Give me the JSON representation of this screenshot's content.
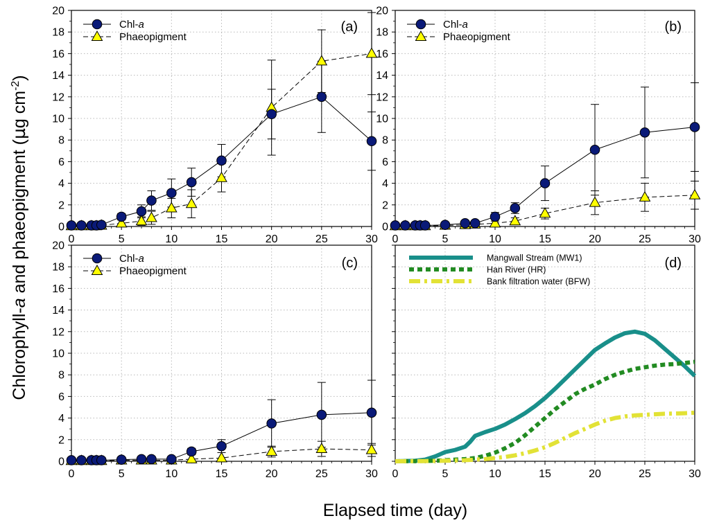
{
  "figure": {
    "ylabel_prefix": "Chlorophyll-",
    "ylabel_italic": "a",
    "ylabel_middle": " and phaeopigment (",
    "ylabel_mu": "µ",
    "ylabel_unit": "g cm",
    "ylabel_sup": "-2",
    "ylabel_close": ")",
    "xlabel": "Elapsed time (day)"
  },
  "chart_data": [
    {
      "type": "line",
      "panel": "(a)",
      "xlim": [
        0,
        30
      ],
      "ylim": [
        0,
        20
      ],
      "xticks": [
        0,
        5,
        10,
        15,
        20,
        25,
        30
      ],
      "yticks": [
        0,
        2,
        4,
        6,
        8,
        10,
        12,
        14,
        16,
        18,
        20
      ],
      "grid": true,
      "legend": [
        {
          "prefix": "Chl-",
          "italic": "a"
        },
        {
          "prefix": "Phaeopigment",
          "italic": ""
        }
      ],
      "series": [
        {
          "name": "Chl-a",
          "marker": "circle",
          "dash": "solid",
          "x": [
            0,
            1,
            2,
            2.5,
            3,
            5,
            7,
            8,
            10,
            12,
            15,
            20,
            25,
            30
          ],
          "y": [
            0.1,
            0.1,
            0.1,
            0.1,
            0.15,
            0.9,
            1.4,
            2.4,
            3.1,
            4.1,
            6.1,
            10.4,
            12.0,
            7.9
          ],
          "err": [
            0.05,
            0.05,
            0.05,
            0.05,
            0.1,
            0.3,
            0.6,
            0.9,
            1.3,
            1.3,
            1.5,
            2.3,
            3.3,
            2.7
          ]
        },
        {
          "name": "Phaeopigment",
          "marker": "triangle",
          "dash": "dashed",
          "x": [
            0,
            1,
            2,
            2.5,
            3,
            5,
            7,
            8,
            10,
            12,
            15,
            20,
            25,
            30
          ],
          "y": [
            0.05,
            0.05,
            0.05,
            0.05,
            0.1,
            0.3,
            0.5,
            0.8,
            1.7,
            2.1,
            4.5,
            11.0,
            15.3,
            16.0
          ],
          "err": [
            0.05,
            0.05,
            0.05,
            0.05,
            0.1,
            0.2,
            0.4,
            0.6,
            0.9,
            1.3,
            1.3,
            4.4,
            2.9,
            3.8
          ]
        }
      ]
    },
    {
      "type": "line",
      "panel": "(b)",
      "xlim": [
        0,
        30
      ],
      "ylim": [
        0,
        20
      ],
      "xticks": [
        0,
        5,
        10,
        15,
        20,
        25,
        30
      ],
      "yticks": [
        0,
        2,
        4,
        6,
        8,
        10,
        12,
        14,
        16,
        18,
        20
      ],
      "grid": true,
      "legend": [
        {
          "prefix": "Chl-",
          "italic": "a"
        },
        {
          "prefix": "Phaeopigment",
          "italic": ""
        }
      ],
      "series": [
        {
          "name": "Chl-a",
          "marker": "circle",
          "dash": "solid",
          "x": [
            0,
            1,
            2,
            2.5,
            3,
            5,
            7,
            8,
            10,
            12,
            15,
            20,
            25,
            30
          ],
          "y": [
            0.1,
            0.1,
            0.1,
            0.1,
            0.1,
            0.15,
            0.3,
            0.3,
            0.9,
            1.7,
            4.0,
            7.1,
            8.7,
            9.2
          ],
          "err": [
            0.05,
            0.05,
            0.05,
            0.05,
            0.05,
            0.1,
            0.2,
            0.2,
            0.4,
            0.5,
            1.6,
            4.2,
            4.2,
            4.1
          ]
        },
        {
          "name": "Phaeopigment",
          "marker": "triangle",
          "dash": "dashed",
          "x": [
            0,
            1,
            2,
            2.5,
            3,
            5,
            7,
            8,
            10,
            12,
            15,
            20,
            25,
            30
          ],
          "y": [
            0.05,
            0.05,
            0.05,
            0.05,
            0.05,
            0.1,
            0.15,
            0.2,
            0.3,
            0.5,
            1.2,
            2.2,
            2.7,
            2.9
          ],
          "err": [
            0.05,
            0.05,
            0.05,
            0.05,
            0.05,
            0.1,
            0.1,
            0.1,
            0.2,
            0.3,
            0.5,
            1.1,
            1.3,
            1.3
          ]
        }
      ]
    },
    {
      "type": "line",
      "panel": "(c)",
      "xlim": [
        0,
        30
      ],
      "ylim": [
        0,
        20
      ],
      "xticks": [
        0,
        5,
        10,
        15,
        20,
        25,
        30
      ],
      "yticks": [
        0,
        2,
        4,
        6,
        8,
        10,
        12,
        14,
        16,
        18,
        20
      ],
      "grid": true,
      "legend": [
        {
          "prefix": "Chl-",
          "italic": "a"
        },
        {
          "prefix": "Phaeopigment",
          "italic": ""
        }
      ],
      "series": [
        {
          "name": "Chl-a",
          "marker": "circle",
          "dash": "solid",
          "x": [
            0,
            1,
            2,
            2.5,
            3,
            5,
            7,
            8,
            10,
            12,
            15,
            20,
            25,
            30
          ],
          "y": [
            0.1,
            0.1,
            0.1,
            0.1,
            0.1,
            0.15,
            0.2,
            0.2,
            0.2,
            0.9,
            1.4,
            3.5,
            4.3,
            4.5
          ],
          "err": [
            0.05,
            0.05,
            0.05,
            0.05,
            0.05,
            0.1,
            0.1,
            0.1,
            0.1,
            0.3,
            0.6,
            2.2,
            3.0,
            3.0
          ]
        },
        {
          "name": "Phaeopigment",
          "marker": "triangle",
          "dash": "dashed",
          "x": [
            0,
            1,
            2,
            2.5,
            3,
            5,
            7,
            8,
            10,
            12,
            15,
            20,
            25,
            30
          ],
          "y": [
            0.05,
            0.05,
            0.05,
            0.05,
            0.05,
            0.1,
            0.1,
            0.1,
            0.1,
            0.2,
            0.3,
            0.9,
            1.15,
            1.05
          ],
          "err": [
            0.05,
            0.05,
            0.05,
            0.05,
            0.05,
            0.05,
            0.05,
            0.05,
            0.05,
            0.1,
            0.1,
            0.5,
            0.7,
            0.6
          ]
        }
      ]
    },
    {
      "type": "line",
      "panel": "(d)",
      "xlim": [
        0,
        30
      ],
      "ylim": [
        0,
        20
      ],
      "xticks": [
        0,
        5,
        10,
        15,
        20,
        25,
        30
      ],
      "yticks": [],
      "grid": true,
      "legend": [
        {
          "prefix": "Mangwall Stream (MW1)",
          "italic": ""
        },
        {
          "prefix": "Han River (HR)",
          "italic": ""
        },
        {
          "prefix": "Bank filtration water (BFW)",
          "italic": ""
        }
      ],
      "series": [
        {
          "name": "Mangwall Stream (MW1)",
          "color": "#198f8a",
          "dash": "solid",
          "x": [
            0,
            2,
            3,
            4,
            5,
            6,
            7,
            7.5,
            8,
            9,
            10,
            11,
            12,
            13,
            14,
            15,
            16,
            17,
            18,
            19,
            20,
            21,
            22,
            23,
            24,
            25,
            26,
            27,
            28,
            29,
            30
          ],
          "y": [
            0,
            0.05,
            0.15,
            0.45,
            0.85,
            1.05,
            1.35,
            1.8,
            2.35,
            2.7,
            3.0,
            3.4,
            3.9,
            4.45,
            5.1,
            5.85,
            6.7,
            7.6,
            8.5,
            9.4,
            10.3,
            10.9,
            11.45,
            11.85,
            12.0,
            11.8,
            11.2,
            10.4,
            9.6,
            8.8,
            7.9
          ]
        },
        {
          "name": "Han River (HR)",
          "color": "#228b22",
          "dash": "dotted",
          "x": [
            0,
            2,
            4,
            5,
            6,
            7,
            8,
            9,
            10,
            11,
            12,
            13,
            14,
            15,
            16,
            17,
            18,
            19,
            20,
            21,
            22,
            23,
            24,
            25,
            26,
            27,
            28,
            29,
            30
          ],
          "y": [
            0,
            0.02,
            0.05,
            0.1,
            0.15,
            0.2,
            0.3,
            0.5,
            0.8,
            1.2,
            1.7,
            2.4,
            3.2,
            4.0,
            4.8,
            5.5,
            6.2,
            6.7,
            7.1,
            7.6,
            8.0,
            8.3,
            8.55,
            8.7,
            8.85,
            8.95,
            9.0,
            9.1,
            9.2
          ]
        },
        {
          "name": "Bank filtration water (BFW)",
          "color": "#e2e236",
          "dash": "dashdot",
          "x": [
            0,
            3,
            5,
            7,
            8,
            9,
            10,
            11,
            12,
            13,
            14,
            15,
            16,
            17,
            18,
            19,
            20,
            21,
            22,
            23,
            24,
            25,
            26,
            27,
            28,
            29,
            30
          ],
          "y": [
            0,
            0.02,
            0.05,
            0.1,
            0.15,
            0.2,
            0.3,
            0.4,
            0.55,
            0.75,
            1.0,
            1.3,
            1.7,
            2.15,
            2.6,
            3.0,
            3.4,
            3.75,
            4.0,
            4.15,
            4.25,
            4.3,
            4.35,
            4.4,
            4.42,
            4.45,
            4.5
          ]
        }
      ]
    }
  ]
}
